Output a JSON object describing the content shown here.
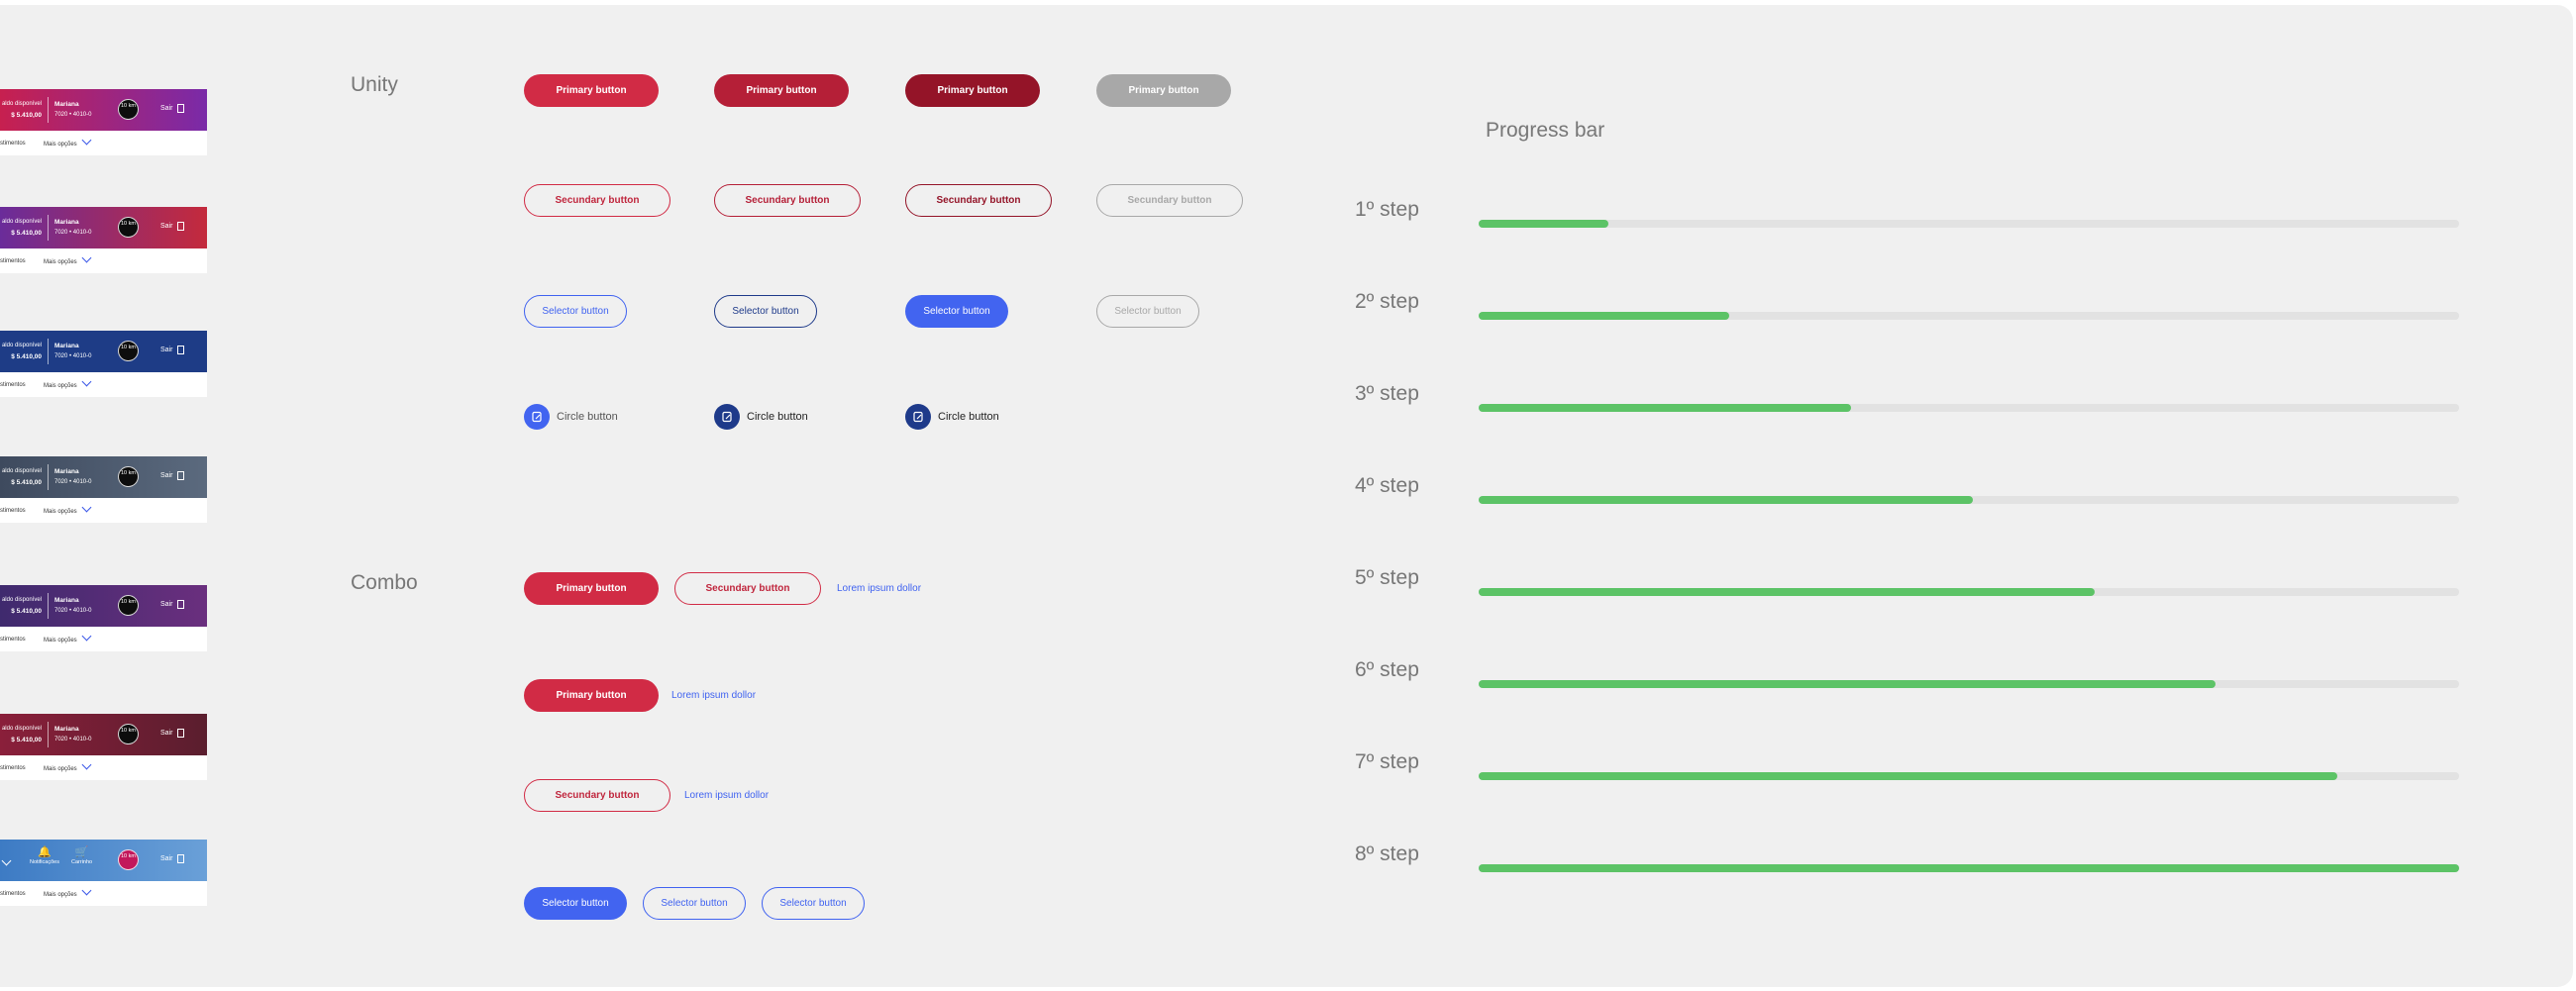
{
  "headers": [
    {
      "bal_label": "aldo disponível",
      "balance": "$ 5.410,00",
      "user": "Mariana",
      "account": "7020 • 4010-0",
      "badge": "10 km",
      "exit": "Sair",
      "sub_left": "stimentos",
      "sub_right": "Mais opções",
      "gradient": [
        "#c7204f",
        "#7a2aa8"
      ]
    },
    {
      "bal_label": "aldo disponível",
      "balance": "$ 5.410,00",
      "user": "Mariana",
      "account": "7020 • 4010-0",
      "badge": "10 km",
      "exit": "Sair",
      "sub_left": "stimentos",
      "sub_right": "Mais opções",
      "gradient": [
        "#6a2c9a",
        "#c42a3c"
      ]
    },
    {
      "bal_label": "aldo disponível",
      "balance": "$ 5.410,00",
      "user": "Mariana",
      "account": "7020 • 4010-0",
      "badge": "10 km",
      "exit": "Sair",
      "sub_left": "stimentos",
      "sub_right": "Mais opções",
      "gradient": [
        "#1e3c86",
        "#1e3c86"
      ]
    },
    {
      "bal_label": "aldo disponível",
      "balance": "$ 5.410,00",
      "user": "Mariana",
      "account": "7020 • 4010-0",
      "badge": "10 km",
      "exit": "Sair",
      "sub_left": "stimentos",
      "sub_right": "Mais opções",
      "gradient": [
        "#3e4a5e",
        "#5b6a7e"
      ]
    },
    {
      "bal_label": "aldo disponível",
      "balance": "$ 5.410,00",
      "user": "Mariana",
      "account": "7020 • 4010-0",
      "badge": "10 km",
      "exit": "Sair",
      "sub_left": "stimentos",
      "sub_right": "Mais opções",
      "gradient": [
        "#3f2a6e",
        "#6a2f7e"
      ]
    },
    {
      "bal_label": "aldo disponível",
      "balance": "$ 5.410,00",
      "user": "Mariana",
      "account": "7020 • 4010-0",
      "badge": "10 km",
      "exit": "Sair",
      "sub_left": "stimentos",
      "sub_right": "Mais opções",
      "gradient": [
        "#8a1f3a",
        "#5a1e2e"
      ]
    },
    {
      "notif": "Notificações",
      "cart": "Carrinho",
      "badge": "10 km",
      "exit": "Sair",
      "sub_left": "stimentos",
      "sub_right": "Mais opções",
      "gradient": [
        "#3d7bc4",
        "#6aa0d8"
      ]
    }
  ],
  "sections": {
    "unity": "Unity",
    "combo": "Combo",
    "progress": "Progress bar"
  },
  "buttons": {
    "primary": "Primary button",
    "secondary": "Secundary button",
    "selector": "Selector button",
    "circle": "Circle button",
    "link": "Lorem ipsum dollor"
  },
  "steps": [
    {
      "label": "1º step",
      "value": 0.132
    },
    {
      "label": "2º step",
      "value": 0.256
    },
    {
      "label": "3º step",
      "value": 0.38
    },
    {
      "label": "4º step",
      "value": 0.504
    },
    {
      "label": "5º step",
      "value": 0.628
    },
    {
      "label": "6º step",
      "value": 0.752
    },
    {
      "label": "7º step",
      "value": 0.876
    },
    {
      "label": "8º step",
      "value": 1.0
    }
  ],
  "colors": {
    "primary": "#d12b45",
    "selector": "#4264f0",
    "progress_fill": "#5cc366",
    "progress_track": "#e2e2e2"
  }
}
